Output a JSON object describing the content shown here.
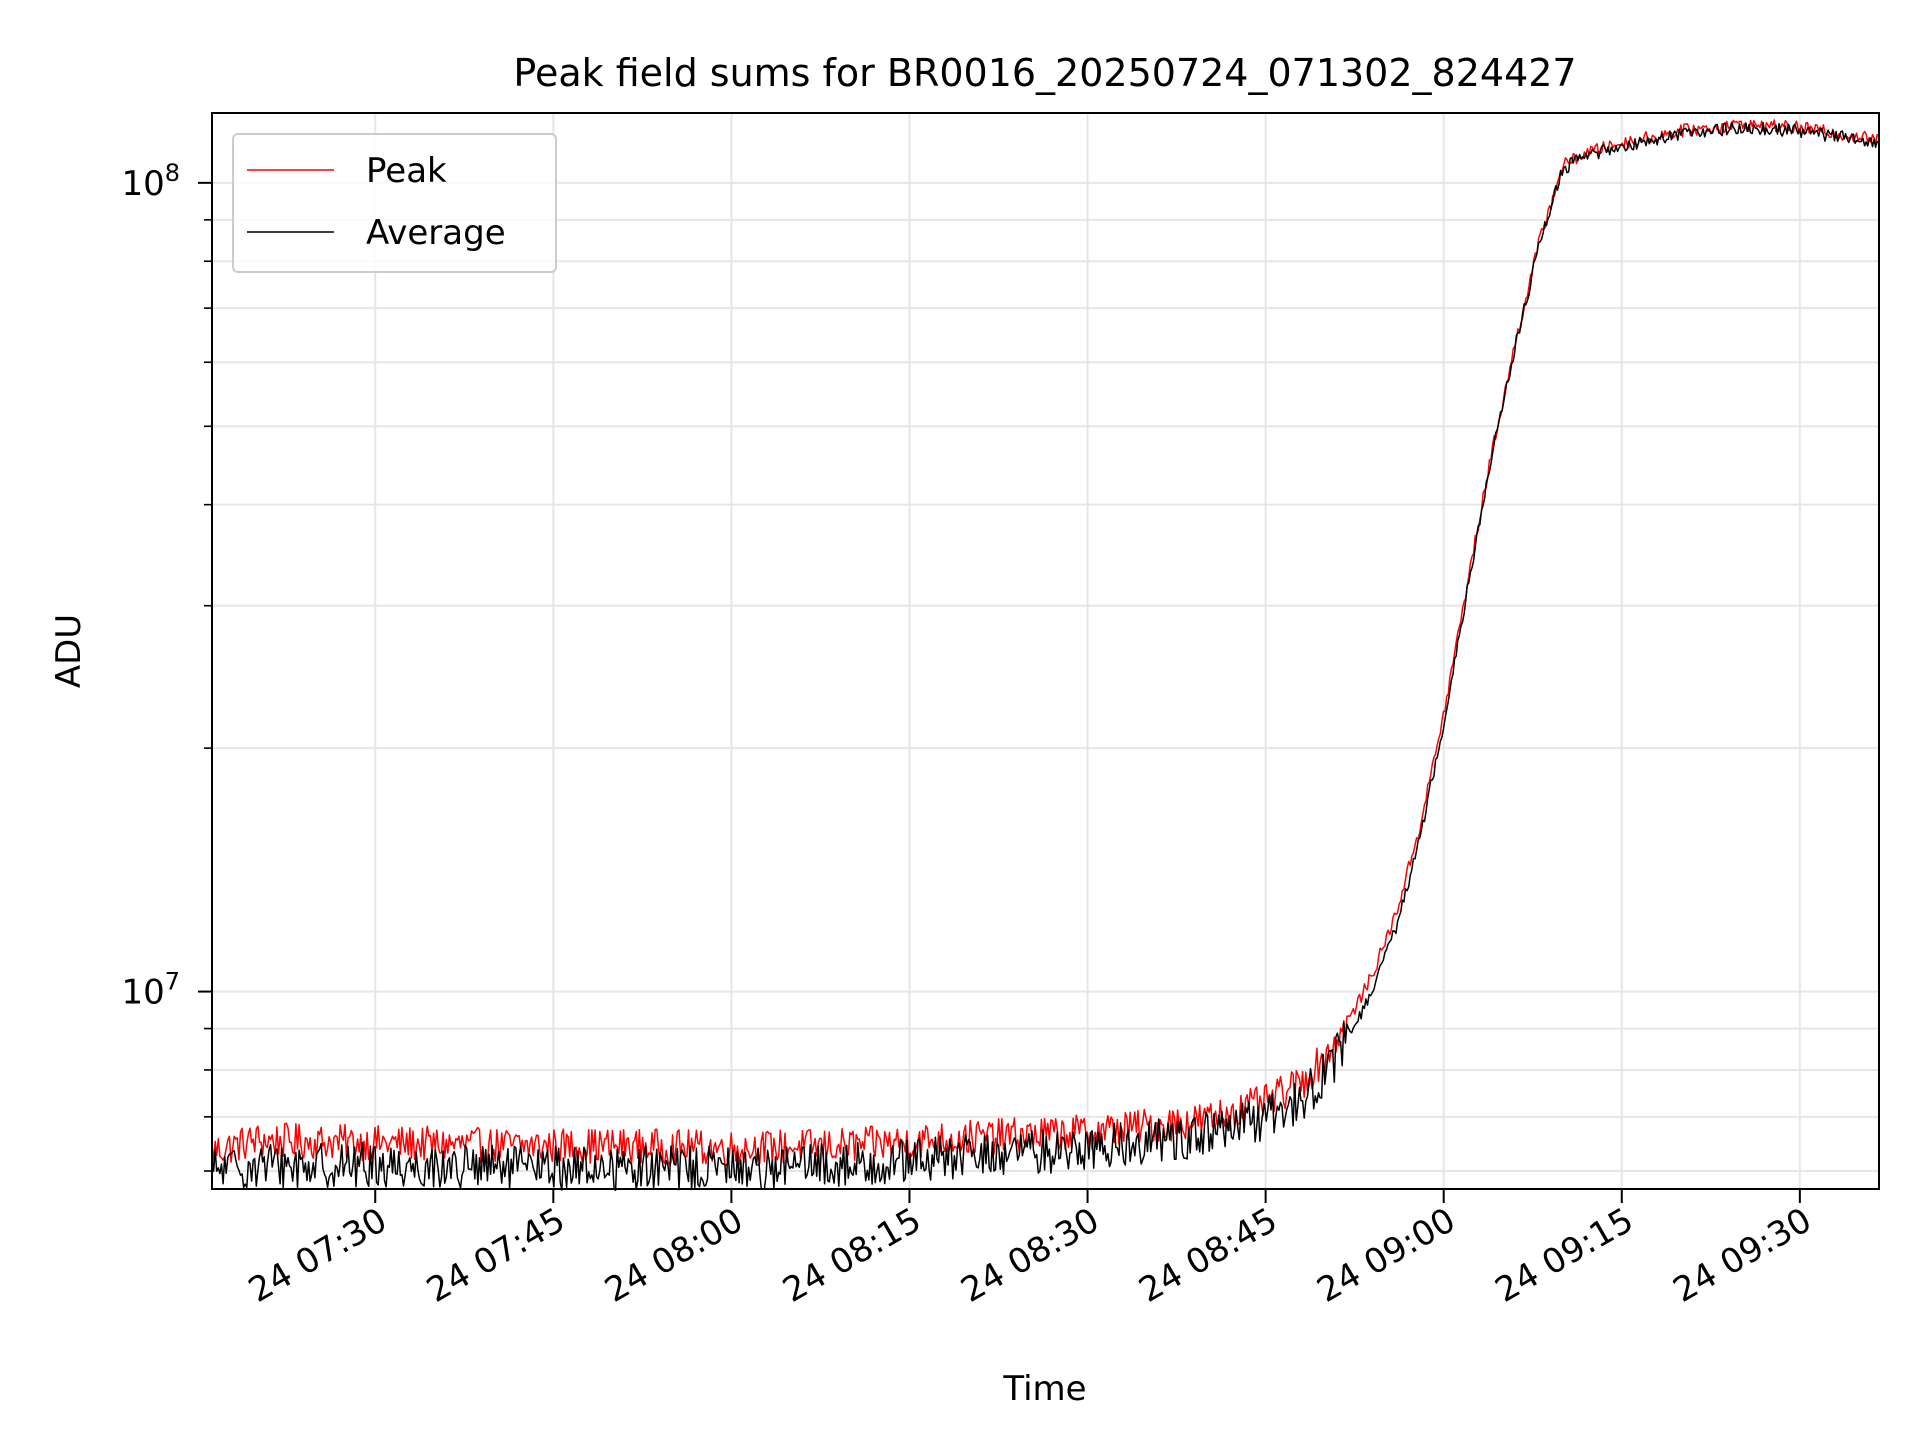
{
  "chart_data": {
    "type": "line",
    "title": "Peak field sums for BR0016_20250724_071302_824427",
    "xlabel": "Time",
    "ylabel": "ADU",
    "y_scale": "log",
    "x_range": [
      "2025-07-24 07:16:15",
      "2025-07-24 09:36:40"
    ],
    "y_range": [
      5700000,
      122000000
    ],
    "x_ticks": [
      {
        "time": "2025-07-24 07:30",
        "label": "24 07:30"
      },
      {
        "time": "2025-07-24 07:45",
        "label": "24 07:45"
      },
      {
        "time": "2025-07-24 08:00",
        "label": "24 08:00"
      },
      {
        "time": "2025-07-24 08:15",
        "label": "24 08:15"
      },
      {
        "time": "2025-07-24 08:30",
        "label": "24 08:30"
      },
      {
        "time": "2025-07-24 08:45",
        "label": "24 08:45"
      },
      {
        "time": "2025-07-24 09:00",
        "label": "24 09:00"
      },
      {
        "time": "2025-07-24 09:15",
        "label": "24 09:15"
      },
      {
        "time": "2025-07-24 09:30",
        "label": "24 09:30"
      }
    ],
    "y_ticks_major": [
      {
        "value": 10000000,
        "label_base": "10",
        "label_exp": "7"
      },
      {
        "value": 100000000,
        "label_base": "10",
        "label_exp": "8"
      }
    ],
    "y_ticks_minor": [
      6000000,
      7000000,
      8000000,
      9000000,
      20000000,
      30000000,
      40000000,
      50000000,
      60000000,
      70000000,
      80000000,
      90000000
    ],
    "grid": true,
    "legend_position": "top-left",
    "series": [
      {
        "name": "Peak",
        "color": "#ff0000",
        "x": [
          "2025-07-24 07:16:15",
          "2025-07-24 07:20",
          "2025-07-24 07:30",
          "2025-07-24 07:40",
          "2025-07-24 07:50",
          "2025-07-24 08:00",
          "2025-07-24 08:10",
          "2025-07-24 08:20",
          "2025-07-24 08:30",
          "2025-07-24 08:40",
          "2025-07-24 08:45",
          "2025-07-24 08:48",
          "2025-07-24 08:50",
          "2025-07-24 08:52",
          "2025-07-24 08:54",
          "2025-07-24 08:56",
          "2025-07-24 08:58",
          "2025-07-24 09:00",
          "2025-07-24 09:02",
          "2025-07-24 09:04",
          "2025-07-24 09:06",
          "2025-07-24 09:08",
          "2025-07-24 09:10",
          "2025-07-24 09:12",
          "2025-07-24 09:15",
          "2025-07-24 09:20",
          "2025-07-24 09:25",
          "2025-07-24 09:30",
          "2025-07-24 09:36:40"
        ],
        "y": [
          6350000,
          6550000,
          6500000,
          6450000,
          6450000,
          6400000,
          6450000,
          6600000,
          6700000,
          6950000,
          7300000,
          7700000,
          8300000,
          9200000,
          10500000,
          12500000,
          16000000,
          22000000,
          32000000,
          46000000,
          63000000,
          84000000,
          105000000,
          109000000,
          112000000,
          116000000,
          118000000,
          117000000,
          113000000
        ]
      },
      {
        "name": "Average",
        "color": "#000000",
        "x": [
          "2025-07-24 07:16:15",
          "2025-07-24 07:20",
          "2025-07-24 07:30",
          "2025-07-24 07:40",
          "2025-07-24 07:50",
          "2025-07-24 08:00",
          "2025-07-24 08:10",
          "2025-07-24 08:20",
          "2025-07-24 08:30",
          "2025-07-24 08:40",
          "2025-07-24 08:45",
          "2025-07-24 08:48",
          "2025-07-24 08:50",
          "2025-07-24 08:52",
          "2025-07-24 08:54",
          "2025-07-24 08:56",
          "2025-07-24 08:58",
          "2025-07-24 09:00",
          "2025-07-24 09:02",
          "2025-07-24 09:04",
          "2025-07-24 09:06",
          "2025-07-24 09:08",
          "2025-07-24 09:10",
          "2025-07-24 09:12",
          "2025-07-24 09:15",
          "2025-07-24 09:20",
          "2025-07-24 09:25",
          "2025-07-24 09:30",
          "2025-07-24 09:36:40"
        ],
        "y": [
          6000000,
          6100000,
          6100000,
          6050000,
          6050000,
          6050000,
          6100000,
          6250000,
          6400000,
          6650000,
          6950000,
          7350000,
          7900000,
          8800000,
          10000000,
          12000000,
          15500000,
          21500000,
          31500000,
          45500000,
          62500000,
          83000000,
          104000000,
          108000000,
          111000000,
          115000000,
          117000000,
          116000000,
          112000000
        ]
      }
    ]
  }
}
